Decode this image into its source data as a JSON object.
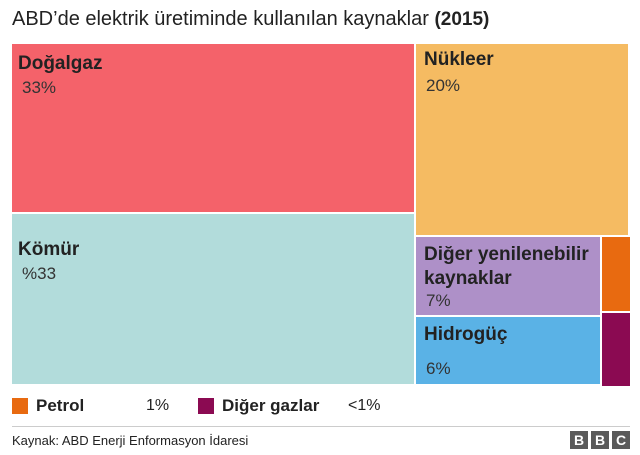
{
  "title": "ABD’de elektrik üretiminde kullanılan kaynaklar",
  "year": "(2015)",
  "chart_data": {
    "type": "treemap",
    "items": [
      {
        "name": "Doğalgaz",
        "label": "33%",
        "value": 33,
        "color": "#f4626a"
      },
      {
        "name": "Kömür",
        "label": "%33",
        "value": 33,
        "color": "#b2dcdb"
      },
      {
        "name": "Nükleer",
        "label": "20%",
        "value": 20,
        "color": "#f5bb62"
      },
      {
        "name": "Diğer yenilenebilir kaynaklar",
        "label": "7%",
        "value": 7,
        "color": "#ae90c8"
      },
      {
        "name": "Hidrogüç",
        "label": "6%",
        "value": 6,
        "color": "#5ab2e6"
      },
      {
        "name": "Petrol",
        "label": "1%",
        "value": 1,
        "color": "#e86a10"
      },
      {
        "name": "Diğer gazlar",
        "label": "<1%",
        "value": 0.5,
        "color": "#8b0a52"
      }
    ]
  },
  "legend": [
    {
      "name": "Petrol",
      "value": "1%",
      "color": "#e86a10"
    },
    {
      "name": "Diğer gazlar",
      "value": "<1%",
      "color": "#8b0a52"
    }
  ],
  "source": "Kaynak: ABD Enerji Enformasyon İdaresi",
  "logo": [
    "B",
    "B",
    "C"
  ]
}
